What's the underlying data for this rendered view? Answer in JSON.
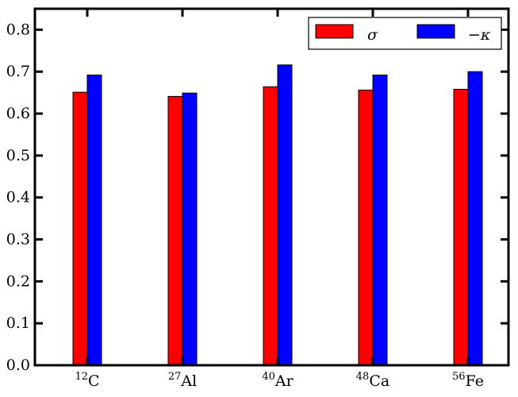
{
  "chart_data": {
    "type": "bar",
    "title": "",
    "xlabel": "",
    "ylabel": "",
    "categories": [
      {
        "mass": "12",
        "symbol": "C"
      },
      {
        "mass": "27",
        "symbol": "Al"
      },
      {
        "mass": "40",
        "symbol": "Ar"
      },
      {
        "mass": "48",
        "symbol": "Ca"
      },
      {
        "mass": "56",
        "symbol": "Fe"
      }
    ],
    "series": [
      {
        "name": "σ",
        "color": "#ff0000",
        "values": [
          0.651,
          0.641,
          0.664,
          0.656,
          0.658
        ]
      },
      {
        "name": "−κ",
        "color": "#0000ff",
        "values": [
          0.692,
          0.649,
          0.716,
          0.692,
          0.7
        ]
      }
    ],
    "ylim": [
      0,
      0.85
    ],
    "yticks": [
      "0.0",
      "0.1",
      "0.2",
      "0.3",
      "0.4",
      "0.5",
      "0.6",
      "0.7",
      "0.8"
    ],
    "grid": false,
    "legend": "top-right"
  }
}
